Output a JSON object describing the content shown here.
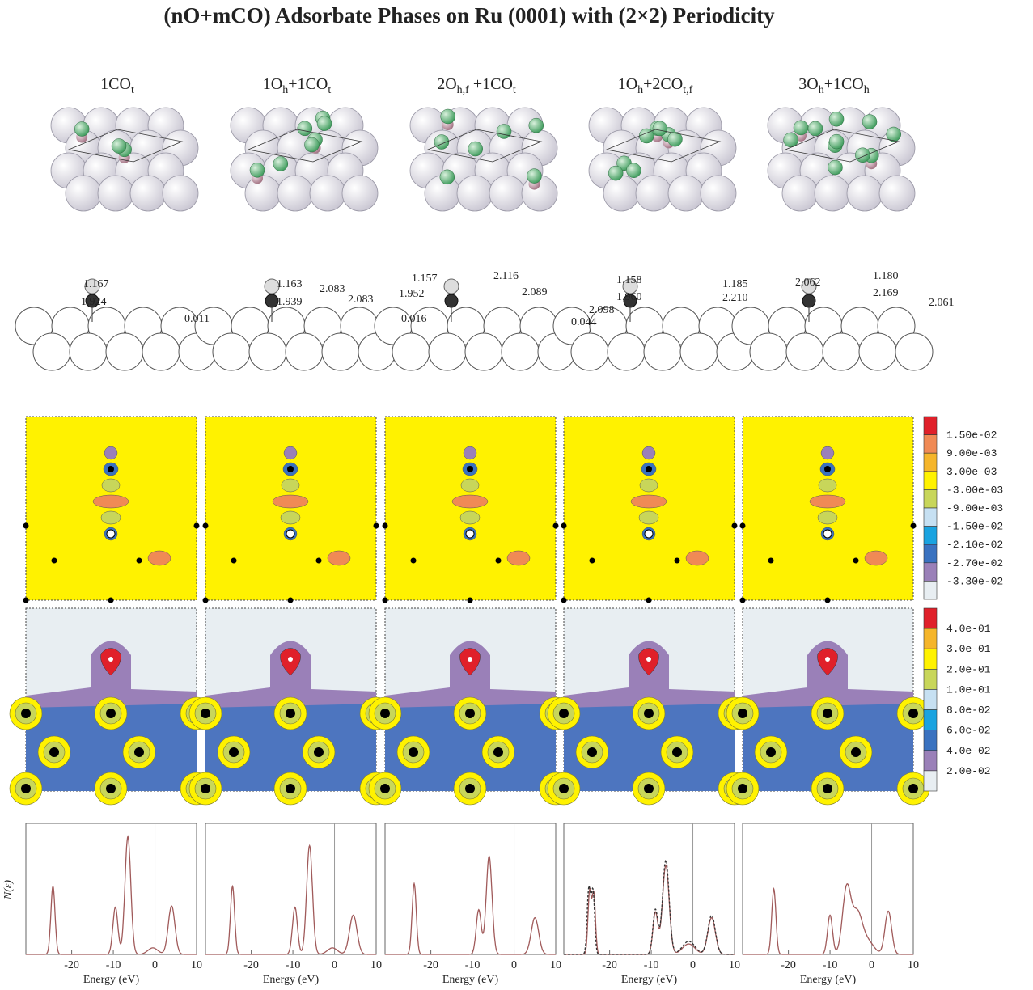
{
  "title": "(nO+mCO) Adsorbate Phases on Ru (0001) with (2×2) Periodicity",
  "panels": [
    {
      "label": [
        {
          "text": "1CO"
        },
        {
          "sub": "t"
        }
      ],
      "side_labels": [
        "1.167",
        "1.924"
      ]
    },
    {
      "label": [
        {
          "text": "1O"
        },
        {
          "sub": "h"
        },
        {
          "text": "+1CO"
        },
        {
          "sub": "t"
        }
      ],
      "side_labels": [
        "1.163",
        "1.939",
        "2.083",
        "2.083",
        "0.011"
      ]
    },
    {
      "label": [
        {
          "text": "2O"
        },
        {
          "sub": "h,f"
        },
        {
          "text": " +1CO"
        },
        {
          "sub": "t"
        }
      ],
      "side_labels": [
        "1.157",
        "1.952",
        "2.116",
        "2.089",
        "0.016"
      ]
    },
    {
      "label": [
        {
          "text": "1O"
        },
        {
          "sub": "h"
        },
        {
          "text": "+2CO"
        },
        {
          "sub": "t,f"
        }
      ],
      "side_labels": [
        "1.158",
        "1.960",
        "2.098",
        "0.044",
        "1.185",
        "2.210"
      ]
    },
    {
      "label": [
        {
          "text": "3O"
        },
        {
          "sub": "h"
        },
        {
          "text": "+1CO"
        },
        {
          "sub": "h"
        }
      ],
      "side_labels": [
        "2.062",
        "1.180",
        "2.169",
        "2.061"
      ]
    }
  ],
  "colorbar_difference": {
    "labels": [
      "1.50e-02",
      "9.00e-03",
      "3.00e-03",
      "-3.00e-03",
      "-9.00e-03",
      "-1.50e-02",
      "-2.10e-02",
      "-2.70e-02",
      "-3.30e-02"
    ],
    "colors": [
      "#e0202a",
      "#f08a55",
      "#f5b52a",
      "#fff200",
      "#c8d65a",
      "#c6e0f2",
      "#1aa3e0",
      "#3a72c0",
      "#9a80b8",
      "#e8eef2"
    ]
  },
  "colorbar_density": {
    "labels": [
      "4.0e-01",
      "3.0e-01",
      "2.0e-01",
      "1.0e-01",
      "8.0e-02",
      "6.0e-02",
      "4.0e-02",
      "2.0e-02"
    ],
    "colors": [
      "#e0202a",
      "#f5b52a",
      "#fff200",
      "#c8d65a",
      "#c6e0f2",
      "#1aa3e0",
      "#3a72c0",
      "#9a80b8",
      "#e8eef2"
    ]
  },
  "chart_data": [
    {
      "type": "line",
      "xlabel": "Energy (eV)",
      "ylabel": "N(ε)",
      "xlim": [
        -31,
        10
      ],
      "ylim": [
        0,
        1
      ],
      "xticks": [
        -20,
        -10,
        0,
        10
      ],
      "series": [
        {
          "color": "#a05a5a",
          "x": [
            -24.5,
            -9.5,
            -6.5,
            -0.5,
            4
          ],
          "values": [
            0.52,
            0.36,
            0.9,
            0.05,
            0.37
          ],
          "widths": [
            0.5,
            0.6,
            0.7,
            1.2,
            0.8
          ]
        }
      ]
    },
    {
      "type": "line",
      "xlabel": "Energy (eV)",
      "xlim": [
        -31,
        10
      ],
      "ylim": [
        0,
        1
      ],
      "xticks": [
        -20,
        -10,
        0,
        10
      ],
      "series": [
        {
          "color": "#a05a5a",
          "x": [
            -24.5,
            -9.5,
            -6,
            -0.5,
            4.5
          ],
          "values": [
            0.52,
            0.36,
            0.83,
            0.05,
            0.3
          ],
          "widths": [
            0.5,
            0.6,
            0.7,
            1.2,
            0.9
          ]
        }
      ]
    },
    {
      "type": "line",
      "xlabel": "Energy (eV)",
      "xlim": [
        -31,
        10
      ],
      "ylim": [
        0,
        1
      ],
      "xticks": [
        -20,
        -10,
        0,
        10
      ],
      "series": [
        {
          "color": "#a05a5a",
          "x": [
            -24,
            -8.5,
            -6,
            5
          ],
          "values": [
            0.54,
            0.34,
            0.75,
            0.28
          ],
          "widths": [
            0.5,
            0.6,
            0.7,
            0.9
          ]
        }
      ]
    },
    {
      "type": "line",
      "xlabel": "Energy (eV)",
      "xlim": [
        -31,
        10
      ],
      "ylim": [
        0,
        1
      ],
      "xticks": [
        -20,
        -10,
        0,
        10
      ],
      "series": [
        {
          "color": "#a05a5a",
          "x": [
            -24.8,
            -23.8,
            -9,
            -6.5,
            -1,
            4.5
          ],
          "values": [
            0.48,
            0.46,
            0.32,
            0.68,
            0.08,
            0.28
          ],
          "widths": [
            0.4,
            0.4,
            0.6,
            0.8,
            1.5,
            0.9
          ]
        },
        {
          "color": "#333333",
          "dash": true,
          "x": [
            -25,
            -24,
            -9,
            -6.5,
            -1,
            4.5
          ],
          "values": [
            0.5,
            0.48,
            0.34,
            0.72,
            0.1,
            0.3
          ],
          "widths": [
            0.4,
            0.4,
            0.6,
            0.8,
            1.5,
            0.9
          ]
        }
      ]
    },
    {
      "type": "line",
      "xlabel": "Energy (eV)",
      "xlim": [
        -31,
        10
      ],
      "ylim": [
        0,
        1
      ],
      "xticks": [
        -20,
        -10,
        0,
        10
      ],
      "series": [
        {
          "color": "#a05a5a",
          "x": [
            -23.5,
            -10,
            -6,
            -3.5,
            -1,
            4
          ],
          "values": [
            0.5,
            0.3,
            0.5,
            0.3,
            0.1,
            0.33
          ],
          "widths": [
            0.5,
            0.6,
            1.0,
            1.2,
            1.5,
            0.8
          ]
        }
      ]
    }
  ]
}
